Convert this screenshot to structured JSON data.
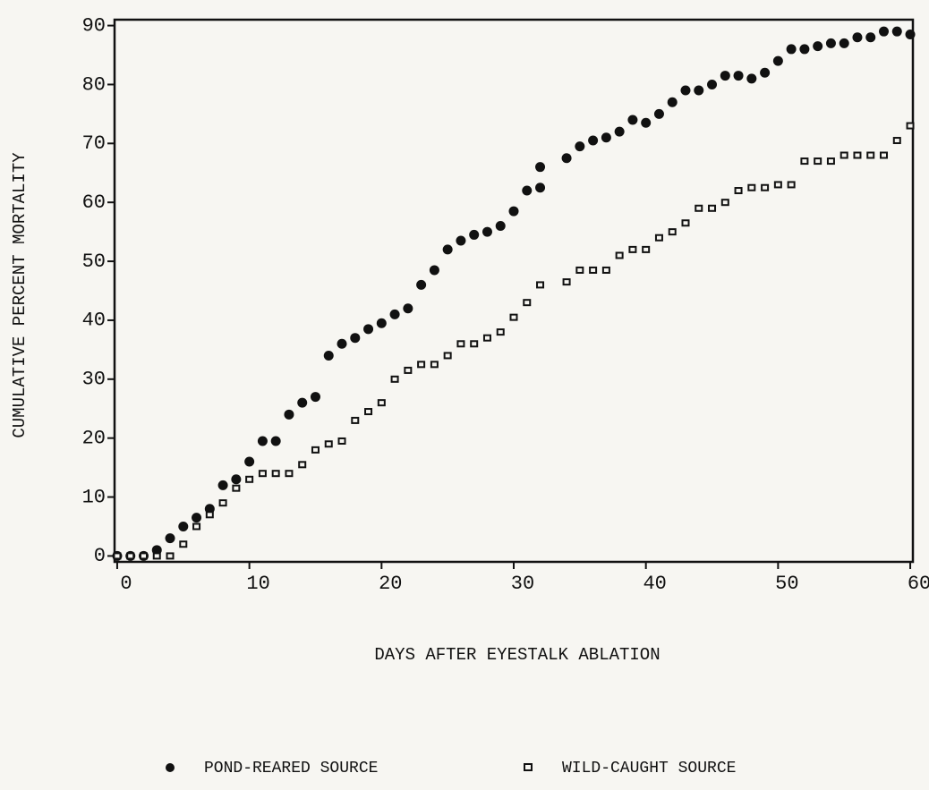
{
  "chart_data": {
    "type": "scatter",
    "x_label": "DAYS AFTER EYESTALK ABLATION",
    "y_label": "CUMULATIVE PERCENT MORTALITY",
    "xlim": [
      -0.2,
      60.2
    ],
    "ylim": [
      -1,
      91
    ],
    "xticks": [
      0,
      10,
      20,
      30,
      40,
      50,
      60
    ],
    "yticks": [
      0,
      10,
      20,
      30,
      40,
      50,
      60,
      70,
      80,
      90
    ],
    "legend": "bottom",
    "series": [
      {
        "name": "POND-REARED SOURCE",
        "color": "#111111",
        "marker": "circle",
        "x": [
          0,
          1,
          2,
          3,
          4,
          5,
          6,
          7,
          8,
          9,
          10,
          11,
          12,
          13,
          14,
          15,
          16,
          17,
          18,
          19,
          20,
          21,
          22,
          23,
          24,
          25,
          26,
          27,
          28,
          29,
          30,
          31,
          32,
          32,
          34,
          35,
          36,
          37,
          38,
          39,
          40,
          41,
          42,
          43,
          44,
          45,
          46,
          47,
          48,
          49,
          50,
          51,
          52,
          53,
          54,
          55,
          56,
          57,
          58,
          59,
          60
        ],
        "values": [
          0,
          0,
          0,
          1,
          3,
          5,
          6.5,
          8,
          12,
          13,
          16,
          19.5,
          19.5,
          24,
          26,
          27,
          34,
          36,
          37,
          38.5,
          39.5,
          41,
          42,
          46,
          48.5,
          52,
          53.5,
          54.5,
          55,
          56,
          58.5,
          62,
          62.5,
          66,
          67.5,
          69.5,
          70.5,
          71,
          72,
          74,
          73.5,
          75,
          77,
          79,
          79,
          80,
          81.5,
          81.5,
          81,
          82,
          84,
          86,
          86,
          86.5,
          87,
          87,
          88,
          88,
          89,
          89,
          88.5
        ]
      },
      {
        "name": "WILD-CAUGHT SOURCE",
        "color": "#111111",
        "marker": "square",
        "x": [
          0,
          1,
          2,
          3,
          4,
          5,
          6,
          7,
          8,
          9,
          10,
          11,
          12,
          13,
          14,
          15,
          16,
          17,
          18,
          19,
          20,
          21,
          22,
          23,
          24,
          25,
          26,
          27,
          28,
          29,
          30,
          31,
          32,
          34,
          35,
          36,
          37,
          38,
          39,
          40,
          41,
          42,
          43,
          44,
          45,
          46,
          47,
          48,
          49,
          50,
          51,
          52,
          53,
          54,
          55,
          56,
          57,
          58,
          59,
          60
        ],
        "values": [
          0,
          0,
          0,
          0,
          0,
          2,
          5,
          7,
          9,
          11.5,
          13,
          14,
          14,
          14,
          15.5,
          18,
          19,
          19.5,
          23,
          24.5,
          26,
          30,
          31.5,
          32.5,
          32.5,
          34,
          36,
          36,
          37,
          38,
          40.5,
          43,
          46,
          46.5,
          48.5,
          48.5,
          48.5,
          51,
          52,
          52,
          54,
          55,
          56.5,
          59,
          59,
          60,
          62,
          62.5,
          62.5,
          63,
          63,
          67,
          67,
          67,
          68,
          68,
          68,
          68,
          70.5,
          73
        ]
      }
    ]
  }
}
